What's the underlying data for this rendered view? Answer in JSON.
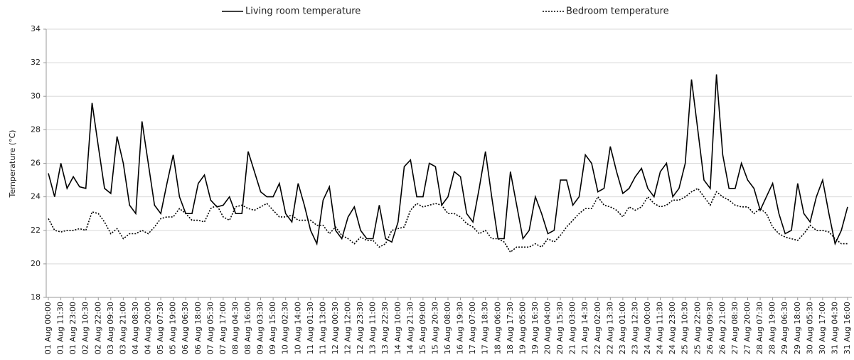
{
  "chart_data": {
    "type": "line",
    "y_label": "Temperature (°C)",
    "ylim": [
      18,
      34
    ],
    "yticks": [
      18,
      20,
      22,
      24,
      26,
      28,
      30,
      32,
      34
    ],
    "grid": true,
    "legend": "top",
    "categories": [
      "01 Aug 00:00",
      null,
      "01 Aug 11:30",
      null,
      "01 Aug 23:00",
      null,
      "02 Aug 10:30",
      null,
      "02 Aug 22:00",
      null,
      "03 Aug 09:30",
      null,
      "03 Aug 21:00",
      null,
      "04 Aug 08:30",
      null,
      "04 Aug 20:00",
      null,
      "05 Aug 07:30",
      null,
      "05 Aug 19:00",
      null,
      "06 Aug 06:30",
      null,
      "06 Aug 18:00",
      null,
      "07 Aug 05:30",
      null,
      "07 Aug 17:00",
      null,
      "08 Aug 04:30",
      null,
      "08 Aug 16:00",
      null,
      "09 Aug 03:30",
      null,
      "09 Aug 15:00",
      null,
      "10 Aug 02:30",
      null,
      "10 Aug 14:00",
      null,
      "11 Aug 01:30",
      null,
      "11 Aug 13:00",
      null,
      "12 Aug 00:30",
      null,
      "12 Aug 12:00",
      null,
      "12 Aug 23:30",
      null,
      "13 Aug 11:00",
      null,
      "13 Aug 22:30",
      null,
      "14 Aug 10:00",
      null,
      "14 Aug 21:30",
      null,
      "15 Aug 09:00",
      null,
      "15 Aug 20:30",
      null,
      "16 Aug 08:00",
      null,
      "16 Aug 19:30",
      null,
      "17 Aug 07:00",
      null,
      "17 Aug 18:30",
      null,
      "18 Aug 06:00",
      null,
      "18 Aug 17:30",
      null,
      "19 Aug 05:00",
      null,
      "19 Aug 16:30",
      null,
      "20 Aug 04:00",
      null,
      "20 Aug 15:30",
      null,
      "21 Aug 03:00",
      null,
      "21 Aug 14:30",
      null,
      "22 Aug 02:00",
      null,
      "22 Aug 13:30",
      null,
      "23 Aug 01:00",
      null,
      "23 Aug 12:30",
      null,
      "24 Aug 00:00",
      null,
      "24 Aug 11:30",
      null,
      "24 Aug 23:00",
      null,
      "25 Aug 10:30",
      null,
      "25 Aug 22:00",
      null,
      "26 Aug 09:30",
      null,
      "26 Aug 21:00",
      null,
      "27 Aug 08:30",
      null,
      "27 Aug 20:00",
      null,
      "28 Aug 07:30",
      null,
      "28 Aug 19:00",
      null,
      "29 Aug 06:30",
      null,
      "29 Aug 18:00",
      null,
      "30 Aug 05:30",
      null,
      "30 Aug 17:00",
      null,
      "31 Aug 04:30",
      null,
      "31 Aug 16:00"
    ],
    "series": [
      {
        "name": "Living room temperature",
        "color": "#000000",
        "style": "solid",
        "values": [
          25.4,
          24,
          26,
          24.5,
          25.2,
          24.6,
          24.5,
          29.6,
          27,
          24.5,
          24.2,
          27.6,
          26,
          23.5,
          23,
          28.5,
          26,
          23.5,
          23,
          24.8,
          26.5,
          24,
          23,
          23,
          24.8,
          25.3,
          23.8,
          23.4,
          23.5,
          24,
          23,
          23,
          26.7,
          25.5,
          24.3,
          24,
          24,
          24.8,
          23,
          22.5,
          24.8,
          23.5,
          22,
          21.2,
          23.8,
          24.6,
          22,
          21.5,
          22.8,
          23.4,
          22,
          21.5,
          21.5,
          23.5,
          21.5,
          21.3,
          22.5,
          25.8,
          26.2,
          24,
          24,
          26,
          25.8,
          23.5,
          24,
          25.5,
          25.2,
          23,
          22.5,
          24.5,
          26.7,
          24,
          21.5,
          21.5,
          25.5,
          23.5,
          21.5,
          22,
          24,
          23,
          21.8,
          22,
          25,
          25,
          23.5,
          24,
          26.5,
          26,
          24.3,
          24.5,
          27,
          25.5,
          24.2,
          24.5,
          25.2,
          25.7,
          24.5,
          24,
          25.5,
          26,
          24,
          24.5,
          26,
          31,
          28,
          25,
          24.5,
          31.3,
          26.5,
          24.5,
          24.5,
          26,
          25,
          24.5,
          23.2,
          24,
          24.8,
          23,
          21.8,
          22,
          24.8,
          23,
          22.5,
          24,
          25,
          23,
          21.2,
          22,
          23.4
        ]
      },
      {
        "name": "Bedroom temperature",
        "color": "#000000",
        "style": "dotted",
        "values": [
          22.7,
          22,
          21.9,
          22,
          22,
          22.1,
          22,
          23.1,
          23,
          22.5,
          21.8,
          22.1,
          21.5,
          21.8,
          21.8,
          22,
          21.8,
          22.2,
          22.7,
          22.8,
          22.8,
          23.3,
          23,
          22.6,
          22.6,
          22.5,
          23.3,
          23.5,
          22.8,
          22.6,
          23.4,
          23.5,
          23.3,
          23.2,
          23.4,
          23.6,
          23.2,
          22.8,
          22.8,
          22.9,
          22.6,
          22.6,
          22.6,
          22.3,
          22.3,
          21.8,
          22.2,
          21.7,
          21.5,
          21.2,
          21.6,
          21.4,
          21.4,
          21,
          21.2,
          22,
          22.1,
          22.2,
          23.2,
          23.6,
          23.4,
          23.5,
          23.6,
          23.5,
          23,
          23,
          22.8,
          22.4,
          22.2,
          21.8,
          22,
          21.5,
          21.5,
          21.3,
          20.7,
          21,
          21,
          21,
          21.2,
          21,
          21.5,
          21.3,
          21.7,
          22.2,
          22.6,
          23,
          23.3,
          23.3,
          24,
          23.5,
          23.4,
          23.2,
          22.8,
          23.4,
          23.2,
          23.4,
          24,
          23.6,
          23.4,
          23.5,
          23.8,
          23.8,
          24,
          24.3,
          24.5,
          24,
          23.5,
          24.3,
          24,
          23.8,
          23.5,
          23.4,
          23.4,
          23,
          23.3,
          23,
          22.2,
          21.8,
          21.6,
          21.5,
          21.4,
          21.8,
          22.3,
          22,
          22,
          21.9,
          21.5,
          21.2,
          21.2
        ]
      }
    ]
  }
}
